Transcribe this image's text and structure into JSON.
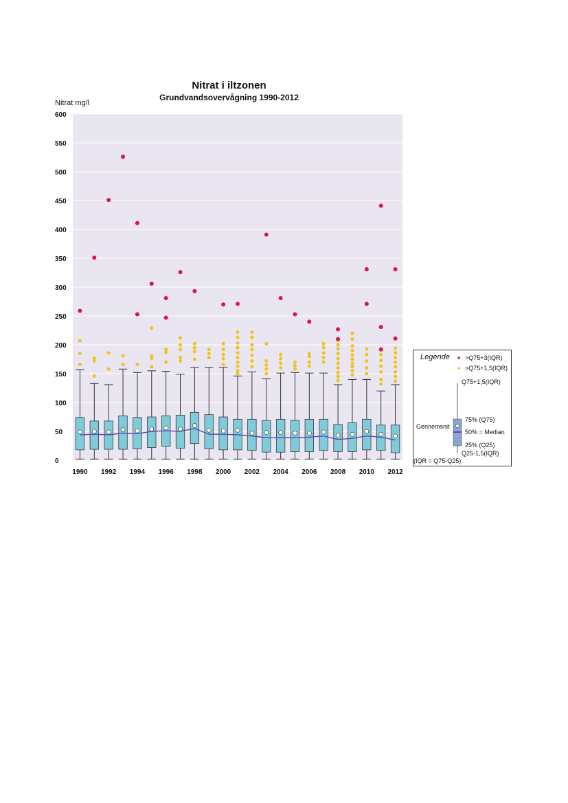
{
  "chart_data": {
    "type": "box",
    "title": "Nitrat i iltzonen",
    "subtitle": "Grundvandsovervågning 1990-2012",
    "ylabel": "Nitrat mg/l",
    "xlabel": "",
    "ylim": [
      0,
      600
    ],
    "yticks": [
      0,
      50,
      100,
      150,
      200,
      250,
      300,
      350,
      400,
      450,
      500,
      550,
      600
    ],
    "x_tick_labels": [
      "1990",
      "1992",
      "1994",
      "1996",
      "1998",
      "2000",
      "2002",
      "2004",
      "2006",
      "2008",
      "2010",
      "2012"
    ],
    "grid": true,
    "series": [
      {
        "year": 1990,
        "low": 2,
        "q25": 18,
        "median": 44,
        "q75": 74,
        "high": 157,
        "mean": 49,
        "mild": [
          166,
          185,
          207
        ],
        "extreme": [
          259
        ]
      },
      {
        "year": 1991,
        "low": 2,
        "q25": 19,
        "median": 45,
        "q75": 68,
        "high": 133,
        "mean": 50,
        "mild": [
          146,
          172,
          177
        ],
        "extreme": [
          351
        ]
      },
      {
        "year": 1992,
        "low": 2,
        "q25": 19,
        "median": 44,
        "q75": 68,
        "high": 131,
        "mean": 49,
        "mild": [
          158,
          186
        ],
        "extreme": [
          451
        ]
      },
      {
        "year": 1993,
        "low": 2,
        "q25": 19,
        "median": 47,
        "q75": 77,
        "high": 158,
        "mean": 53,
        "mild": [
          166,
          181
        ],
        "extreme": [
          526
        ]
      },
      {
        "year": 1994,
        "low": 2,
        "q25": 20,
        "median": 46,
        "q75": 74,
        "high": 152,
        "mean": 51,
        "mild": [
          166
        ],
        "extreme": [
          253,
          411
        ]
      },
      {
        "year": 1995,
        "low": 2,
        "q25": 22,
        "median": 50,
        "q75": 75,
        "high": 155,
        "mean": 54,
        "mild": [
          162,
          176,
          181,
          229
        ],
        "extreme": [
          306
        ]
      },
      {
        "year": 1996,
        "low": 2,
        "q25": 24,
        "median": 51,
        "q75": 77,
        "high": 154,
        "mean": 56,
        "mild": [
          170,
          187,
          192
        ],
        "extreme": [
          247,
          281
        ]
      },
      {
        "year": 1997,
        "low": 2,
        "q25": 21,
        "median": 50,
        "q75": 78,
        "high": 149,
        "mean": 54,
        "mild": [
          172,
          178,
          192,
          200,
          212
        ],
        "extreme": [
          326
        ]
      },
      {
        "year": 1998,
        "low": 2,
        "q25": 29,
        "median": 55,
        "q75": 83,
        "high": 161,
        "mean": 60,
        "mild": [
          175,
          188,
          195,
          202
        ],
        "extreme": [
          293
        ]
      },
      {
        "year": 1999,
        "low": 2,
        "q25": 20,
        "median": 45,
        "q75": 79,
        "high": 161,
        "mean": 52,
        "mild": [
          178,
          185,
          192
        ],
        "extreme": []
      },
      {
        "year": 2000,
        "low": 2,
        "q25": 18,
        "median": 45,
        "q75": 75,
        "high": 161,
        "mean": 51,
        "mild": [
          166,
          176,
          183,
          192,
          202
        ],
        "extreme": [
          270
        ]
      },
      {
        "year": 2001,
        "low": 2,
        "q25": 18,
        "median": 44,
        "q75": 71,
        "high": 146,
        "mean": 52,
        "mild": [
          150,
          155,
          163,
          170,
          178,
          186,
          195,
          203,
          213,
          222
        ],
        "extreme": [
          271
        ]
      },
      {
        "year": 2002,
        "low": 2,
        "q25": 17,
        "median": 42,
        "q75": 71,
        "high": 153,
        "mean": 47,
        "mild": [
          162,
          172,
          182,
          192,
          200,
          213,
          222
        ],
        "extreme": []
      },
      {
        "year": 2003,
        "low": 2,
        "q25": 14,
        "median": 39,
        "q75": 69,
        "high": 141,
        "mean": 48,
        "mild": [
          150,
          158,
          165,
          172,
          202
        ],
        "extreme": [
          391
        ]
      },
      {
        "year": 2004,
        "low": 2,
        "q25": 14,
        "median": 39,
        "q75": 71,
        "high": 151,
        "mean": 48,
        "mild": [
          160,
          168,
          176,
          183
        ],
        "extreme": [
          281
        ]
      },
      {
        "year": 2005,
        "low": 2,
        "q25": 15,
        "median": 39,
        "q75": 69,
        "high": 152,
        "mean": 47,
        "mild": [
          158,
          164,
          170
        ],
        "extreme": [
          253
        ]
      },
      {
        "year": 2006,
        "low": 2,
        "q25": 15,
        "median": 40,
        "q75": 71,
        "high": 151,
        "mean": 47,
        "mild": [
          163,
          170,
          180,
          185
        ],
        "extreme": [
          240
        ]
      },
      {
        "year": 2007,
        "low": 2,
        "q25": 17,
        "median": 42,
        "q75": 71,
        "high": 151,
        "mean": 49,
        "mild": [
          170,
          178,
          186,
          195,
          202
        ],
        "extreme": []
      },
      {
        "year": 2008,
        "low": 2,
        "q25": 15,
        "median": 36,
        "q75": 62,
        "high": 131,
        "mean": 43,
        "mild": [
          138,
          145,
          152,
          160,
          168,
          176,
          185,
          193,
          200,
          208
        ],
        "extreme": [
          210,
          227
        ]
      },
      {
        "year": 2009,
        "low": 2,
        "q25": 15,
        "median": 38,
        "q75": 65,
        "high": 140,
        "mean": 45,
        "mild": [
          148,
          155,
          162,
          168,
          175,
          182,
          190,
          198,
          210,
          220
        ],
        "extreme": []
      },
      {
        "year": 2010,
        "low": 2,
        "q25": 18,
        "median": 42,
        "q75": 71,
        "high": 140,
        "mean": 50,
        "mild": [
          150,
          160,
          172,
          183,
          193
        ],
        "extreme": [
          271,
          331
        ]
      },
      {
        "year": 2011,
        "low": 2,
        "q25": 17,
        "median": 40,
        "q75": 61,
        "high": 120,
        "mean": 45,
        "mild": [
          132,
          140,
          153,
          163,
          173,
          183,
          193
        ],
        "extreme": [
          192,
          231,
          441
        ]
      },
      {
        "year": 2012,
        "low": 2,
        "q25": 13,
        "median": 35,
        "q75": 61,
        "high": 131,
        "mean": 42,
        "mild": [
          137,
          145,
          153,
          162,
          170,
          178,
          186,
          194
        ],
        "extreme": [
          211,
          331
        ]
      }
    ],
    "colors": {
      "plot_bg": "#e9e5f1",
      "box_fill": "#7fcbd9",
      "median_line": "#5a4aa8",
      "extreme": "#d8164a",
      "mild": "#f0c419",
      "whisker": "#333333",
      "gridline": "#ffffff"
    }
  },
  "legend": {
    "title": "Legende",
    "extreme_label": ">Q75+3(IQR)",
    "mild_label": ">Q75+1,5(IQR)",
    "upper_whisker_label": "Q75+1,5(IQR)",
    "q75_label": "75% (Q75)",
    "mean_label": "Gennemsnit",
    "median_label": "50% = Median",
    "q25_label": "25% (Q25)",
    "lower_whisker_label": "Q25-1,5(IQR)",
    "iqr_label": "(IQR = Q75-Q25)"
  }
}
